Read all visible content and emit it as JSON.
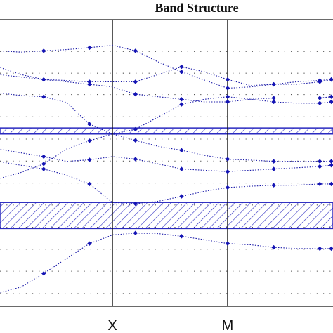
{
  "chart_data": {
    "type": "line",
    "title": "Band Structure",
    "xlabel": "",
    "ylabel": "",
    "x_ticks": [
      {
        "label": "X",
        "x": 1
      },
      {
        "label": "M",
        "x": 2
      }
    ],
    "xlim": [
      0,
      2.9
    ],
    "ylim": [
      0.1,
      1.0
    ],
    "grid": "dotted horizontal",
    "series": [
      {
        "x": [
          0,
          0.2,
          0.4,
          0.6,
          0.8,
          1.0,
          1.2,
          1.4,
          1.6,
          1.8,
          2.0,
          2.2,
          2.4,
          2.6,
          2.8,
          2.9
        ],
        "y": [
          0.902,
          0.898,
          0.902,
          0.906,
          0.912,
          0.92,
          0.902,
          0.867,
          0.836,
          0.81,
          0.785,
          0.789,
          0.797,
          0.797,
          0.805,
          0.812
        ]
      },
      {
        "x": [
          0,
          0.2,
          0.4,
          0.6,
          0.8,
          1.0,
          1.2,
          1.4,
          1.6,
          1.8,
          2.0,
          2.2,
          2.4,
          2.6,
          2.8,
          2.9
        ],
        "y": [
          0.852,
          0.828,
          0.812,
          0.809,
          0.805,
          0.805,
          0.805,
          0.828,
          0.852,
          0.836,
          0.812,
          0.793,
          0.797,
          0.805,
          0.809,
          0.812
        ]
      },
      {
        "x": [
          0,
          0.2,
          0.4,
          0.6,
          0.8,
          1.0,
          1.2,
          1.4,
          1.6,
          1.8,
          2.0,
          2.2,
          2.4,
          2.6,
          2.8,
          2.9
        ],
        "y": [
          0.828,
          0.82,
          0.812,
          0.805,
          0.797,
          0.789,
          0.766,
          0.758,
          0.75,
          0.742,
          0.742,
          0.75,
          0.754,
          0.754,
          0.754,
          0.758
        ]
      },
      {
        "x": [
          0,
          0.2,
          0.4,
          0.6,
          0.8,
          1.0,
          1.2,
          1.4,
          1.6,
          1.8,
          2.0,
          2.2,
          2.4,
          2.6,
          2.8,
          2.9
        ],
        "y": [
          0.77,
          0.762,
          0.758,
          0.74,
          0.672,
          0.641,
          0.656,
          0.695,
          0.734,
          0.75,
          0.758,
          0.75,
          0.742,
          0.738,
          0.738,
          0.742
        ]
      },
      {
        "x": [
          0,
          0.2,
          0.4,
          0.6,
          0.8,
          1.0,
          1.2,
          1.4,
          1.6,
          1.8,
          2.0,
          2.2,
          2.4,
          2.6,
          2.8,
          2.9
        ],
        "y": [
          0.5,
          0.52,
          0.547,
          0.594,
          0.62,
          0.641,
          0.621,
          0.602,
          0.59,
          0.574,
          0.562,
          0.559,
          0.555,
          0.555,
          0.555,
          0.555
        ]
      },
      {
        "x": [
          0,
          0.2,
          0.4,
          0.6,
          0.8,
          1.0,
          1.2,
          1.4,
          1.6,
          1.8,
          2.0,
          2.2,
          2.4,
          2.6,
          2.8,
          2.9
        ],
        "y": [
          0.594,
          0.582,
          0.57,
          0.555,
          0.56,
          0.57,
          0.562,
          0.547,
          0.531,
          0.527,
          0.523,
          0.527,
          0.531,
          0.535,
          0.539,
          0.543
        ]
      },
      {
        "x": [
          0,
          0.2,
          0.4,
          0.6,
          0.8,
          1.0,
          1.2,
          1.4,
          1.6,
          1.8,
          2.0,
          2.2,
          2.4,
          2.6,
          2.8,
          2.9
        ],
        "y": [
          0.555,
          0.543,
          0.531,
          0.512,
          0.484,
          0.426,
          0.422,
          0.43,
          0.445,
          0.461,
          0.473,
          0.477,
          0.48,
          0.48,
          0.484,
          0.484
        ]
      },
      {
        "x": [
          0,
          0.2,
          0.4,
          0.6,
          0.8,
          1.0,
          1.2,
          1.4,
          1.6,
          1.8,
          2.0,
          2.2,
          2.4,
          2.6,
          2.8,
          2.9
        ],
        "y": [
          0.141,
          0.16,
          0.203,
          0.25,
          0.297,
          0.324,
          0.33,
          0.328,
          0.32,
          0.309,
          0.297,
          0.293,
          0.285,
          0.281,
          0.281,
          0.281
        ]
      }
    ],
    "gaps": [
      {
        "range": [
          0.641,
          0.66
        ]
      },
      {
        "range": [
          0.344,
          0.426
        ]
      }
    ],
    "colors": {
      "line": "#1a1aa8",
      "marker": "#1414b4",
      "hatch": "#2a2ac0",
      "axis": "#111111",
      "grid": "#555555"
    }
  }
}
